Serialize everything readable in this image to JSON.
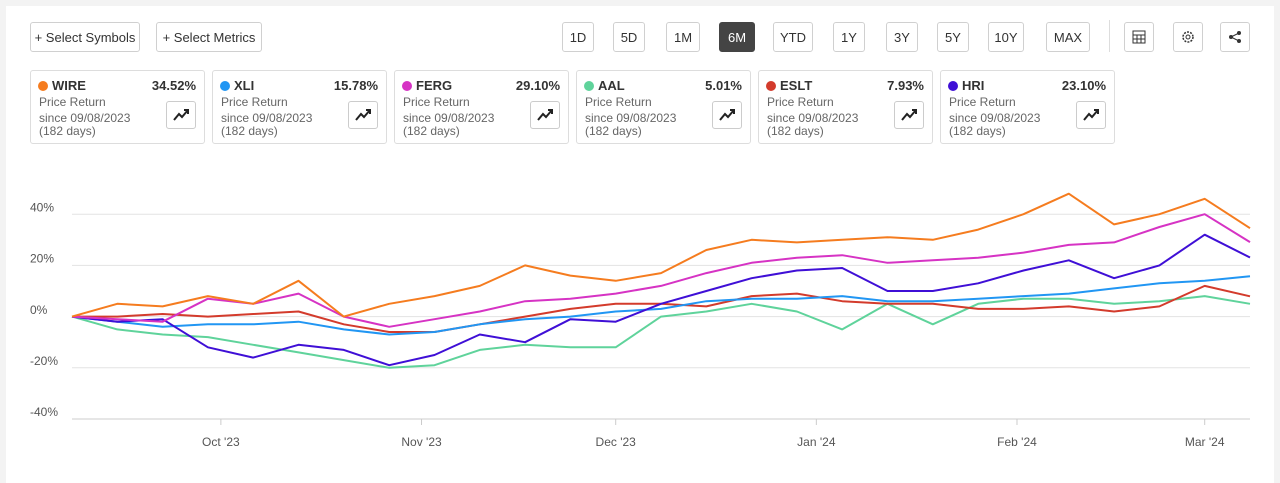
{
  "toolbar": {
    "left_buttons": [
      "+ Select Symbols",
      "+ Select Metrics"
    ],
    "ranges": [
      "1D",
      "5D",
      "1M",
      "6M",
      "YTD",
      "1Y",
      "3Y",
      "5Y",
      "10Y",
      "MAX"
    ],
    "active_range": "6M"
  },
  "cards": [
    {
      "symbol": "WIRE",
      "color": "#f57c1f",
      "value": "34.52%",
      "metric": "Price Return",
      "since": "since 09/08/2023",
      "days": "(182 days)"
    },
    {
      "symbol": "XLI",
      "color": "#2196f3",
      "value": "15.78%",
      "metric": "Price Return",
      "since": "since 09/08/2023",
      "days": "(182 days)"
    },
    {
      "symbol": "FERG",
      "color": "#d633c4",
      "value": "29.10%",
      "metric": "Price Return",
      "since": "since 09/08/2023",
      "days": "(182 days)"
    },
    {
      "symbol": "AAL",
      "color": "#5fd39b",
      "value": "5.01%",
      "metric": "Price Return",
      "since": "since 09/08/2023",
      "days": "(182 days)"
    },
    {
      "symbol": "ESLT",
      "color": "#d33b2c",
      "value": "7.93%",
      "metric": "Price Return",
      "since": "since 09/08/2023",
      "days": "(182 days)"
    },
    {
      "symbol": "HRI",
      "color": "#3f0fd6",
      "value": "23.10%",
      "metric": "Price Return",
      "since": "since 09/08/2023",
      "days": "(182 days)"
    }
  ],
  "chart_data": {
    "type": "line",
    "x": [
      0,
      7,
      14,
      21,
      28,
      35,
      42,
      49,
      56,
      63,
      70,
      77,
      84,
      91,
      98,
      105,
      112,
      119,
      126,
      133,
      140,
      147,
      154,
      161,
      168,
      175,
      182
    ],
    "xlim": [
      0,
      182
    ],
    "xticks": [
      {
        "value": 23,
        "label": "Oct '23"
      },
      {
        "value": 54,
        "label": "Nov '23"
      },
      {
        "value": 84,
        "label": "Dec '23"
      },
      {
        "value": 115,
        "label": "Jan '24"
      },
      {
        "value": 146,
        "label": "Feb '24"
      },
      {
        "value": 175,
        "label": "Mar '24"
      }
    ],
    "ylim": [
      -40,
      60
    ],
    "yticks": [
      {
        "value": -40,
        "label": "-40%"
      },
      {
        "value": -20,
        "label": "-20%"
      },
      {
        "value": 0,
        "label": "0%"
      },
      {
        "value": 20,
        "label": "20%"
      },
      {
        "value": 40,
        "label": "40%"
      }
    ],
    "grid": true,
    "series": [
      {
        "name": "AAL",
        "color": "#5fd39b",
        "values": [
          0,
          -5,
          -7,
          -8,
          -11,
          -14,
          -17,
          -20,
          -19,
          -13,
          -11,
          -12,
          -12,
          0,
          2,
          5,
          2,
          -5,
          5,
          -3,
          5,
          7,
          7,
          5,
          6,
          8,
          5.01
        ]
      },
      {
        "name": "ESLT",
        "color": "#d33b2c",
        "values": [
          0,
          0,
          1,
          0,
          1,
          2,
          -3,
          -6,
          -6,
          -3,
          0,
          3,
          5,
          5,
          4,
          8,
          9,
          6,
          5,
          5,
          3,
          3,
          4,
          2,
          4,
          12,
          7.93
        ]
      },
      {
        "name": "XLI",
        "color": "#2196f3",
        "values": [
          0,
          -2,
          -4,
          -3,
          -3,
          -2,
          -5,
          -7,
          -6,
          -3,
          -1,
          0,
          2,
          3,
          6,
          7,
          7,
          8,
          6,
          6,
          7,
          8,
          9,
          11,
          13,
          14,
          15.78
        ]
      },
      {
        "name": "HRI",
        "color": "#3f0fd6",
        "values": [
          0,
          -2,
          -1,
          -12,
          -16,
          -11,
          -13,
          -19,
          -15,
          -7,
          -10,
          -1,
          -2,
          5,
          10,
          15,
          18,
          19,
          10,
          10,
          13,
          18,
          22,
          15,
          20,
          32,
          23.1
        ]
      },
      {
        "name": "FERG",
        "color": "#d633c4",
        "values": [
          0,
          -1,
          -2,
          7,
          5,
          9,
          0,
          -4,
          -1,
          2,
          6,
          7,
          9,
          12,
          17,
          21,
          23,
          24,
          21,
          22,
          23,
          25,
          28,
          29,
          35,
          40,
          29.1
        ]
      },
      {
        "name": "WIRE",
        "color": "#f57c1f",
        "values": [
          0,
          5,
          4,
          8,
          5,
          14,
          0,
          5,
          8,
          12,
          20,
          16,
          14,
          17,
          26,
          30,
          29,
          30,
          31,
          30,
          34,
          40,
          48,
          36,
          40,
          46,
          34.52
        ]
      }
    ]
  }
}
